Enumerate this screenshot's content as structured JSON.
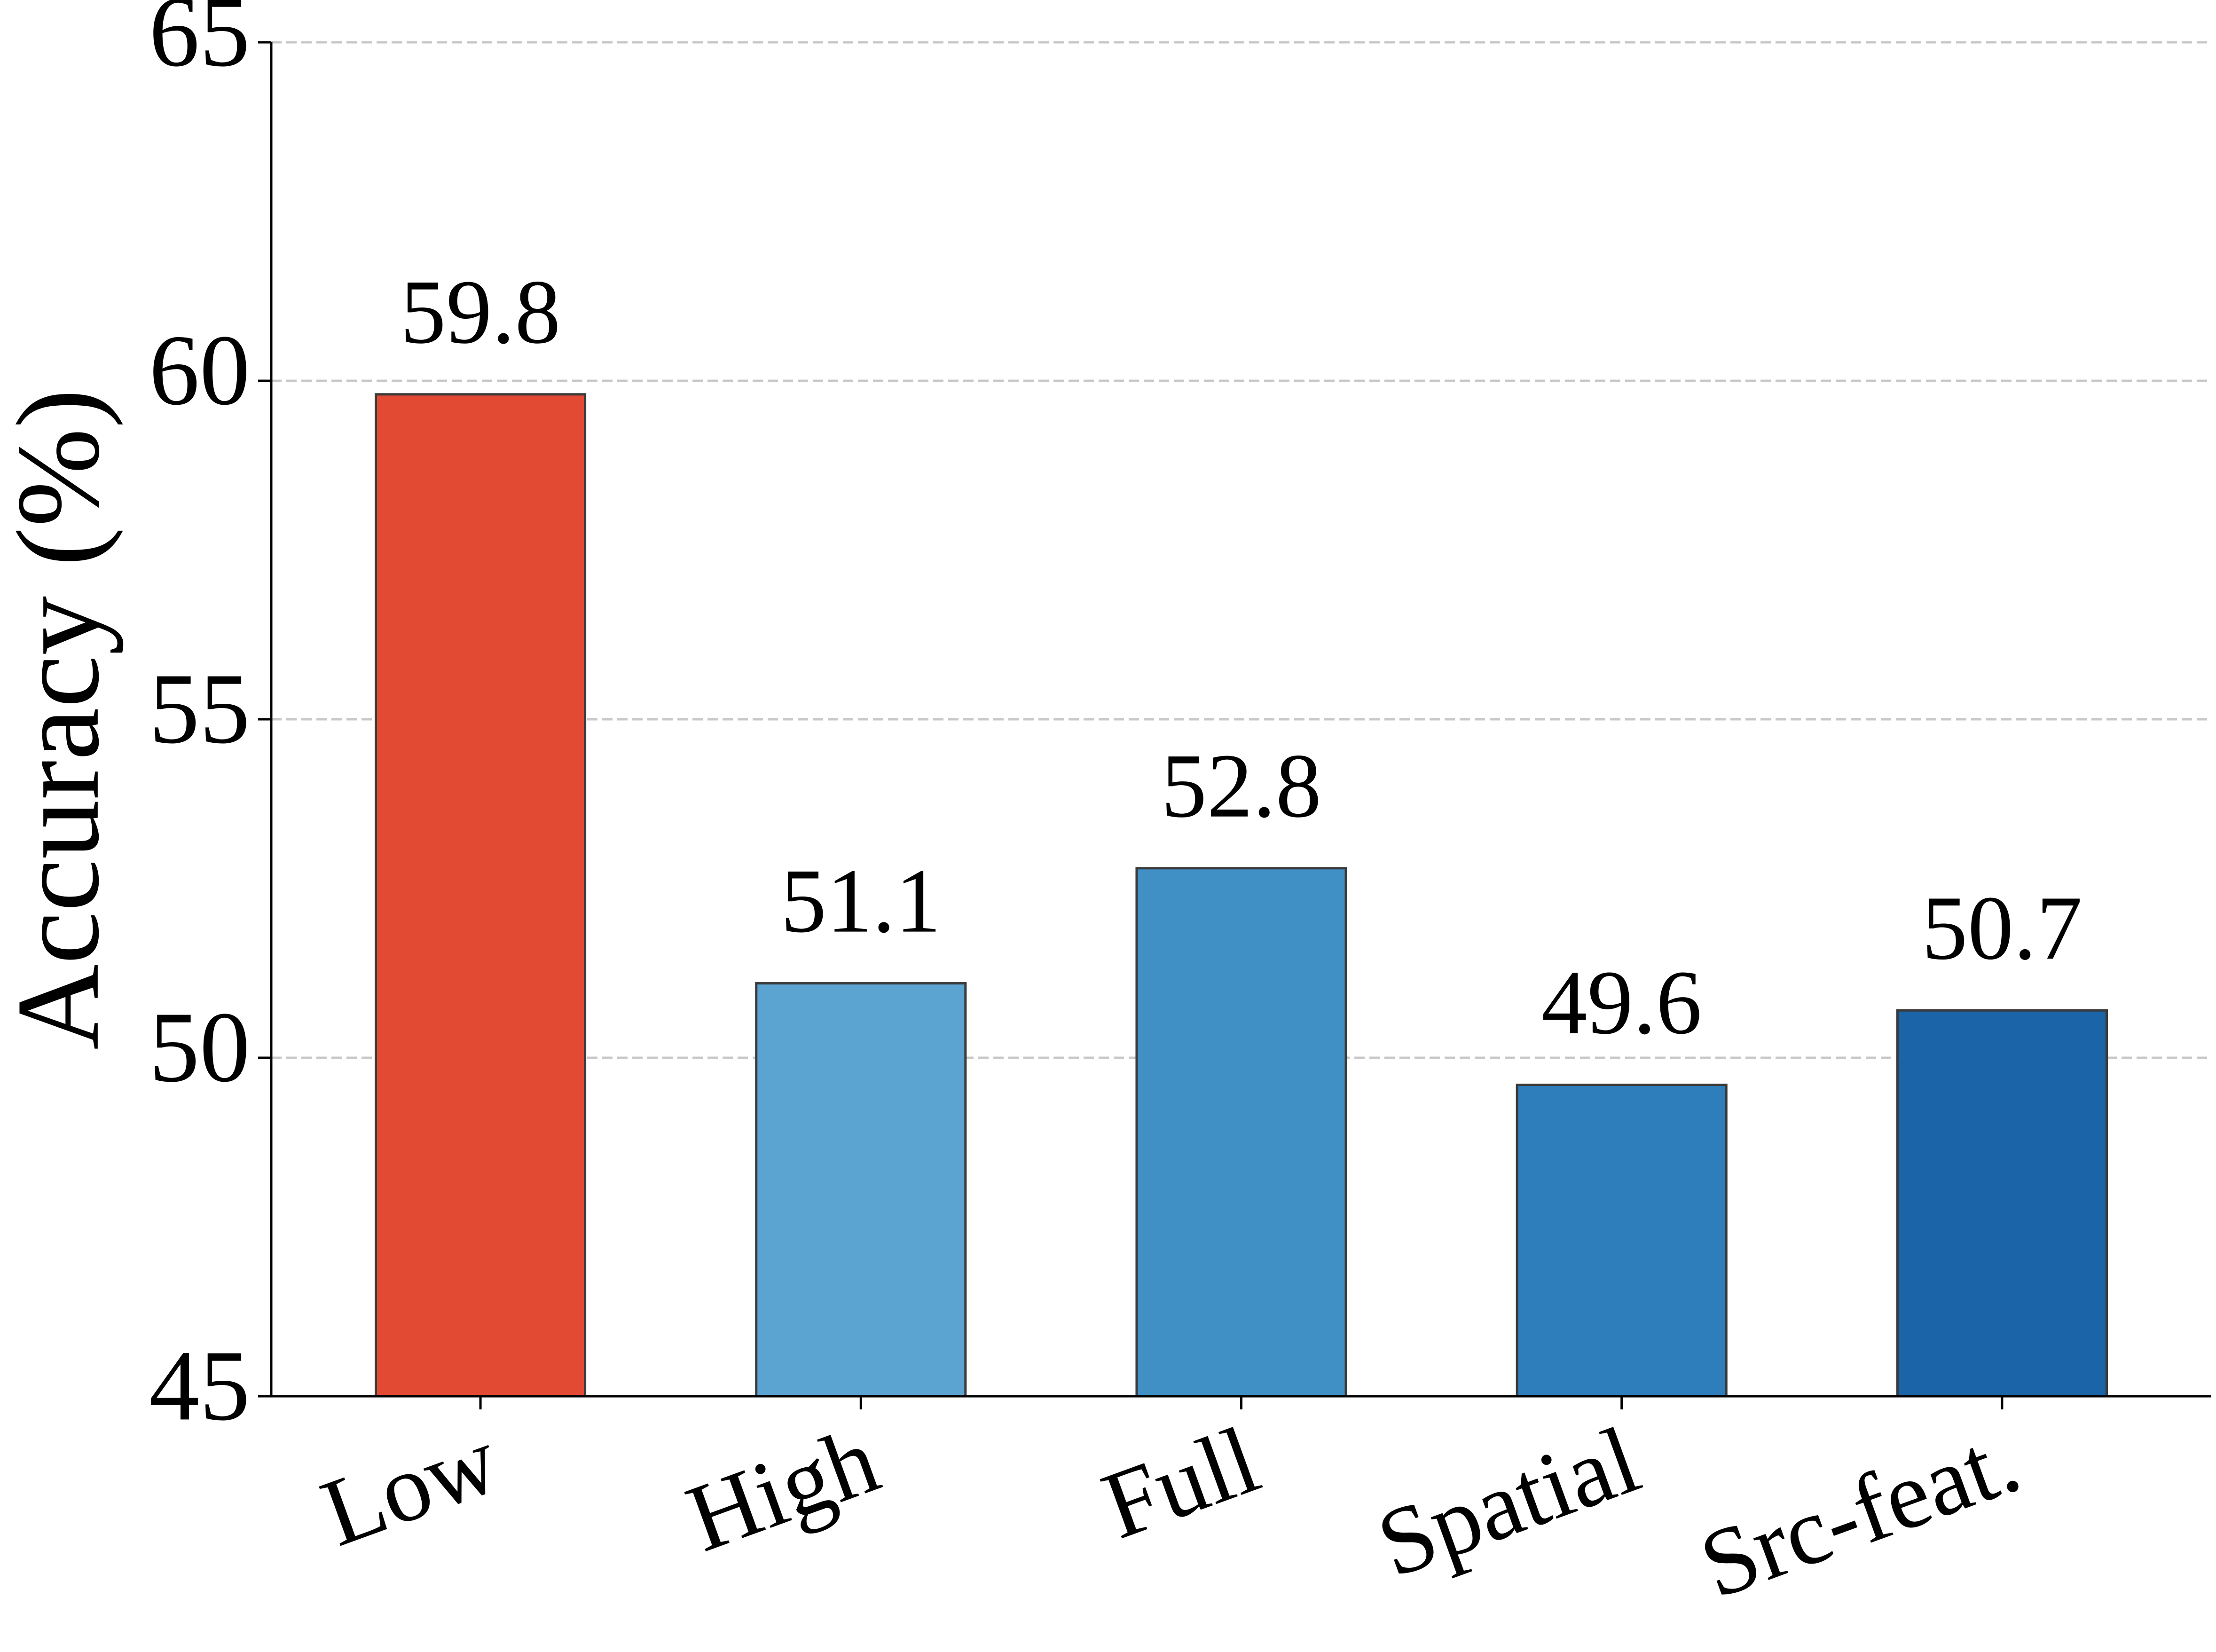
{
  "chart_data": {
    "type": "bar",
    "y_label": "Accuracy (%)",
    "categories": [
      "Low",
      "High",
      "Full",
      "Spatial",
      "Src-feat."
    ],
    "values": [
      59.8,
      51.1,
      52.8,
      49.6,
      50.7
    ],
    "colors": [
      "#e34a33",
      "#5ba3d0",
      "#4090c5",
      "#2e7ebc",
      "#1b64a8"
    ],
    "ylim": [
      45,
      65
    ],
    "yticks": [
      45,
      50,
      55,
      60,
      65
    ],
    "grid": true
  }
}
